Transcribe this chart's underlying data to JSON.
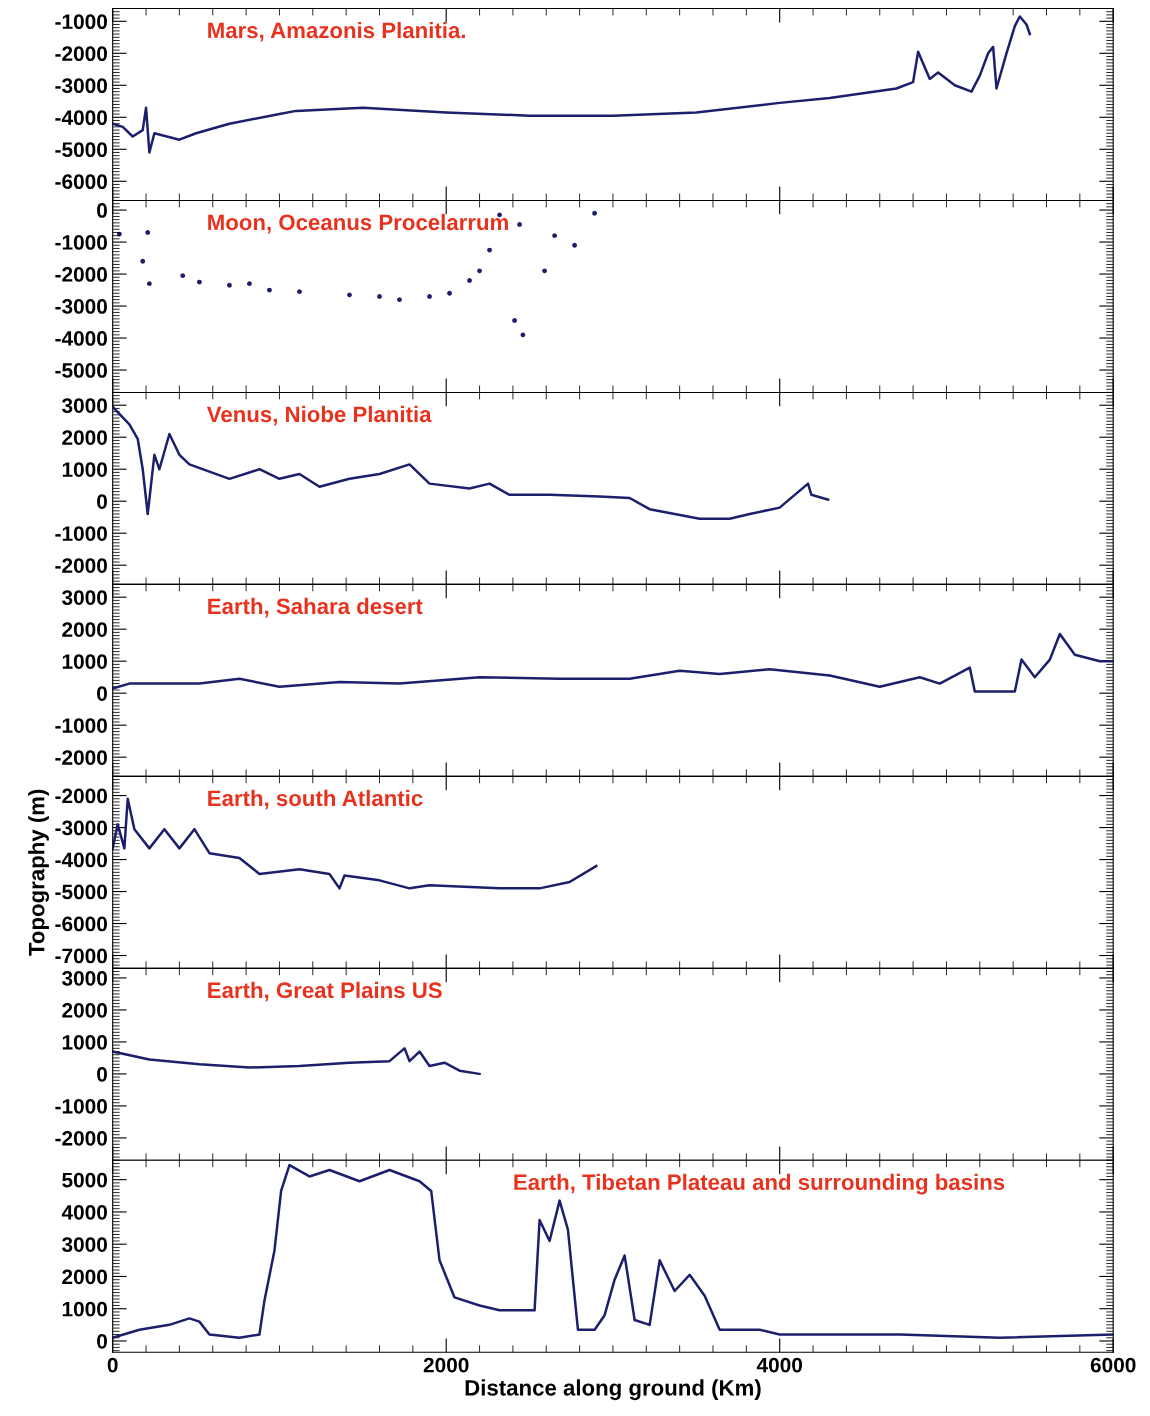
{
  "chart_data": [
    {
      "type": "line",
      "title": "Mars, Amazonis Planitia.",
      "xlim": [
        0,
        6000
      ],
      "xticks": [
        0,
        2000,
        4000,
        6000
      ],
      "ylim": [
        -6600,
        -600
      ],
      "yticks": [
        -6000,
        -5000,
        -4000,
        -3000,
        -2000,
        -1000
      ],
      "tick_labels": "y",
      "grid": false,
      "series": [
        {
          "color": "#1c1f6b",
          "x": [
            0,
            60,
            120,
            180,
            200,
            220,
            250,
            400,
            500,
            700,
            1000,
            1100,
            1500,
            2000,
            2500,
            3000,
            3500,
            4000,
            4300,
            4500,
            4700,
            4800,
            4830,
            4900,
            4950,
            5050,
            5150,
            5200,
            5250,
            5280,
            5300,
            5360,
            5410,
            5440,
            5480,
            5500
          ],
          "values": [
            -4200,
            -4300,
            -4600,
            -4400,
            -3700,
            -5100,
            -4500,
            -4700,
            -4500,
            -4200,
            -3900,
            -3800,
            -3700,
            -3850,
            -3950,
            -3950,
            -3850,
            -3550,
            -3400,
            -3250,
            -3100,
            -2900,
            -1950,
            -2800,
            -2600,
            -3000,
            -3200,
            -2700,
            -2000,
            -1800,
            -3100,
            -2000,
            -1150,
            -850,
            -1100,
            -1400
          ]
        }
      ]
    },
    {
      "type": "scatter",
      "title": "Moon, Oceanus Procelarrum",
      "xlim": [
        0,
        6000
      ],
      "xticks": [
        0,
        2000,
        4000,
        6000
      ],
      "ylim": [
        -5700,
        300
      ],
      "yticks": [
        -5000,
        -4000,
        -3000,
        -2000,
        -1000,
        0
      ],
      "tick_labels": "y",
      "grid": false,
      "marker": "circle",
      "series": [
        {
          "color": "#1c1f6b",
          "x": [
            40,
            180,
            210,
            220,
            420,
            520,
            700,
            820,
            940,
            1120,
            1420,
            1600,
            1720,
            1900,
            2020,
            2140,
            2200,
            2260,
            2320,
            2440,
            2410,
            2460,
            2590,
            2650,
            2770,
            2890
          ],
          "values": [
            -750,
            -1600,
            -700,
            -2300,
            -2050,
            -2250,
            -2350,
            -2300,
            -2500,
            -2550,
            -2650,
            -2700,
            -2800,
            -2700,
            -2600,
            -2200,
            -1900,
            -1250,
            -150,
            -450,
            -3450,
            -3900,
            -1900,
            -800,
            -1100,
            -100
          ]
        }
      ]
    },
    {
      "type": "line",
      "title": "Venus, Niobe Planitia",
      "xlim": [
        0,
        6000
      ],
      "xticks": [
        0,
        2000,
        4000,
        6000
      ],
      "ylim": [
        -2600,
        3400
      ],
      "yticks": [
        -2000,
        -1000,
        0,
        1000,
        2000,
        3000
      ],
      "tick_labels": "y",
      "grid": false,
      "series": [
        {
          "color": "#1c1f6b",
          "x": [
            0,
            100,
            150,
            180,
            210,
            250,
            280,
            340,
            400,
            460,
            700,
            880,
            1000,
            1120,
            1240,
            1420,
            1600,
            1780,
            1900,
            2140,
            2260,
            2380,
            2620,
            2920,
            3100,
            3220,
            3520,
            3700,
            3820,
            4000,
            4170,
            4190,
            4290
          ],
          "values": [
            2950,
            2400,
            1950,
            1000,
            -400,
            1450,
            1000,
            2100,
            1450,
            1150,
            700,
            1000,
            700,
            850,
            450,
            700,
            850,
            1150,
            550,
            400,
            550,
            200,
            200,
            150,
            100,
            -250,
            -550,
            -550,
            -400,
            -200,
            550,
            200,
            50
          ]
        }
      ]
    },
    {
      "type": "line",
      "title": "Earth, Sahara desert",
      "xlim": [
        0,
        6000
      ],
      "xticks": [
        0,
        2000,
        4000,
        6000
      ],
      "ylim": [
        -2600,
        3400
      ],
      "yticks": [
        -2000,
        -1000,
        0,
        1000,
        2000,
        3000
      ],
      "tick_labels": "y",
      "grid": false,
      "series": [
        {
          "color": "#1c1f6b",
          "x": [
            0,
            100,
            520,
            760,
            1000,
            1360,
            1720,
            2200,
            2680,
            3100,
            3400,
            3640,
            3940,
            4300,
            4600,
            4840,
            4960,
            5140,
            5170,
            5410,
            5450,
            5530,
            5620,
            5680,
            5770,
            5920,
            6000
          ],
          "values": [
            150,
            300,
            300,
            450,
            200,
            350,
            300,
            500,
            450,
            450,
            700,
            600,
            750,
            550,
            200,
            500,
            300,
            800,
            50,
            50,
            1050,
            500,
            1050,
            1850,
            1200,
            1000,
            1000
          ]
        }
      ]
    },
    {
      "type": "line",
      "title": "Earth, south Atlantic",
      "ylabel": "Topography (m)",
      "xlim": [
        0,
        6000
      ],
      "xticks": [
        0,
        2000,
        4000,
        6000
      ],
      "ylim": [
        -7400,
        -1400
      ],
      "yticks": [
        -7000,
        -6000,
        -5000,
        -4000,
        -3000,
        -2000
      ],
      "tick_labels": "y",
      "grid": false,
      "series": [
        {
          "color": "#1c1f6b",
          "x": [
            0,
            30,
            70,
            90,
            130,
            220,
            310,
            400,
            490,
            580,
            760,
            880,
            1120,
            1300,
            1360,
            1390,
            1600,
            1780,
            1900,
            2320,
            2560,
            2740,
            2900
          ],
          "values": [
            -3650,
            -2900,
            -3650,
            -2100,
            -3050,
            -3650,
            -3050,
            -3650,
            -3050,
            -3800,
            -3950,
            -4450,
            -4300,
            -4450,
            -4900,
            -4500,
            -4650,
            -4900,
            -4800,
            -4900,
            -4900,
            -4700,
            -4200
          ]
        }
      ]
    },
    {
      "type": "line",
      "title": "Earth, Great Plains US",
      "xlim": [
        0,
        6000
      ],
      "xticks": [
        0,
        2000,
        4000,
        6000
      ],
      "ylim": [
        -2700,
        3300
      ],
      "yticks": [
        -2000,
        -1000,
        0,
        1000,
        2000,
        3000
      ],
      "tick_labels": "y",
      "grid": false,
      "series": [
        {
          "color": "#1c1f6b",
          "x": [
            0,
            220,
            520,
            820,
            1120,
            1420,
            1660,
            1750,
            1780,
            1840,
            1900,
            1990,
            2080,
            2200
          ],
          "values": [
            700,
            450,
            300,
            200,
            250,
            350,
            400,
            800,
            400,
            700,
            250,
            350,
            100,
            0
          ]
        }
      ]
    },
    {
      "type": "line",
      "title": "Earth, Tibetan Plateau and surrounding basins",
      "xlabel": "Distance along ground (Km)",
      "xlim": [
        0,
        6000
      ],
      "xticks": [
        0,
        2000,
        4000,
        6000
      ],
      "ylim": [
        -350,
        5600
      ],
      "yticks": [
        0,
        1000,
        2000,
        3000,
        4000,
        5000
      ],
      "grid": false,
      "series": [
        {
          "color": "#1c1f6b",
          "x": [
            0,
            160,
            340,
            460,
            520,
            580,
            760,
            880,
            910,
            970,
            1010,
            1060,
            1180,
            1300,
            1480,
            1660,
            1840,
            1910,
            1960,
            2050,
            2200,
            2320,
            2530,
            2560,
            2620,
            2680,
            2730,
            2790,
            2890,
            2950,
            3010,
            3070,
            3130,
            3220,
            3280,
            3370,
            3460,
            3550,
            3640,
            3880,
            4000,
            4720,
            5320,
            6000
          ],
          "values": [
            100,
            350,
            500,
            700,
            600,
            200,
            100,
            200,
            1250,
            2800,
            4650,
            5450,
            5100,
            5300,
            4950,
            5300,
            4950,
            4650,
            2500,
            1350,
            1100,
            950,
            950,
            3750,
            3100,
            4350,
            3450,
            350,
            350,
            800,
            1900,
            2650,
            650,
            500,
            2500,
            1550,
            2050,
            1400,
            350,
            350,
            200,
            200,
            100,
            200
          ]
        }
      ]
    }
  ]
}
